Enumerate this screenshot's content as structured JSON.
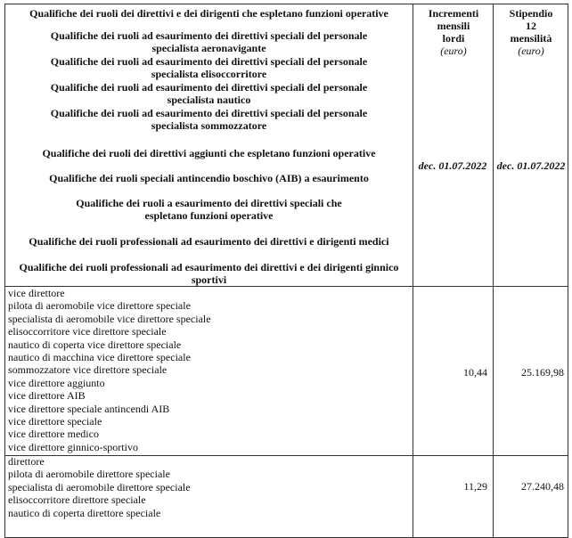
{
  "header": {
    "groups": [
      "Qualifiche dei ruoli dei direttivi e dei dirigenti che espletano funzioni operative",
      "Qualifiche dei ruoli ad esaurimento dei direttivi speciali del personale specialista aeronavigante",
      "Qualifiche dei ruoli ad esaurimento dei direttivi speciali del personale specialista elisoccorritore",
      "Qualifiche dei ruoli ad esaurimento dei direttivi speciali del personale specialista nautico",
      "Qualifiche dei ruoli ad esaurimento dei direttivi speciali del personale specialista sommozzatore",
      "Qualifiche dei ruoli dei direttivi aggiunti che espletano funzioni operative",
      "Qualifiche dei ruoli speciali antincendio boschivo (AIB) a esaurimento",
      "Qualifiche dei ruoli a esaurimento dei direttivi speciali che espletano funzioni operative",
      "Qualifiche dei ruoli professionali ad esaurimento dei direttivi e dirigenti medici",
      "Qualifiche dei ruoli professionali ad esaurimento dei direttivi e dei dirigenti ginnico sportivi"
    ],
    "col2": {
      "title": "Incrementi mensili lordi",
      "unit": "(euro)",
      "date": "dec. 01.07.2022"
    },
    "col3": {
      "title": "Stipendio 12 mensilità",
      "unit": "(euro)",
      "date": "dec. 01.07.2022"
    }
  },
  "rows": [
    {
      "items": [
        "vice direttore",
        "pilota di aeromobile vice direttore speciale",
        "specialista di aeromobile vice direttore speciale",
        "elisoccorritore vice direttore speciale",
        "nautico di coperta vice direttore speciale",
        "nautico di macchina vice direttore speciale",
        "sommozzatore vice direttore speciale",
        "vice direttore aggiunto",
        "vice direttore AIB",
        "vice direttore speciale antincendi AIB",
        "vice direttore speciale",
        "vice direttore medico",
        "vice direttore ginnico-sportivo"
      ],
      "increment": "10,44",
      "salary": "25.169,98"
    },
    {
      "items": [
        "direttore",
        "pilota di aeromobile direttore speciale",
        "specialista di aeromobile direttore speciale",
        "elisoccorritore direttore speciale",
        "nautico di coperta direttore speciale"
      ],
      "increment": "11,29",
      "salary": "27.240,48"
    }
  ]
}
